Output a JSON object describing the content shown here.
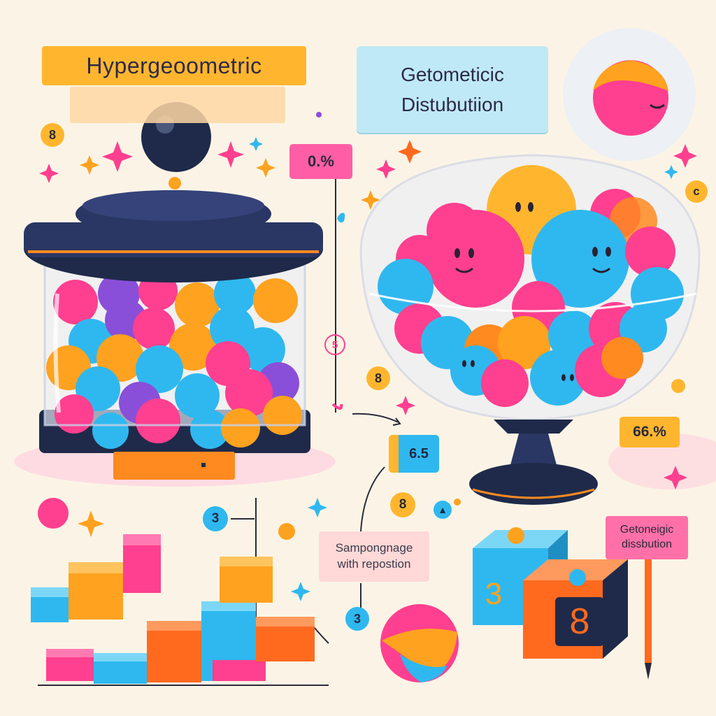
{
  "titles": {
    "hypergeometric": "Hypergeoometric",
    "geometric_line1": "Getometicic",
    "geometric_line2": "Distubutiion"
  },
  "labels": {
    "percent_top": "0.%",
    "percent_right": "66.%",
    "block_value": "6.5",
    "sample_note_line1": "Sampongnage",
    "sample_note_line2": "with repostion",
    "sign_line1": "Getoneigic",
    "sign_line2": "dissbution"
  },
  "numbers": {
    "coin_top_left": "8",
    "coin_mid": "8",
    "coin_low_mid": "8",
    "coin_right": "c",
    "coin_blue_left": "3",
    "coin_blue_bottom": "3",
    "thread_value": "5",
    "box_blue_digit": "3",
    "box_orange_digit": "8"
  },
  "colors": {
    "background": "#fbf4e6",
    "pink": "#ff3f8f",
    "orange": "#ffa21f",
    "blue": "#2fb8ef",
    "purple": "#8a4fd8",
    "navy": "#1f2a4a"
  }
}
